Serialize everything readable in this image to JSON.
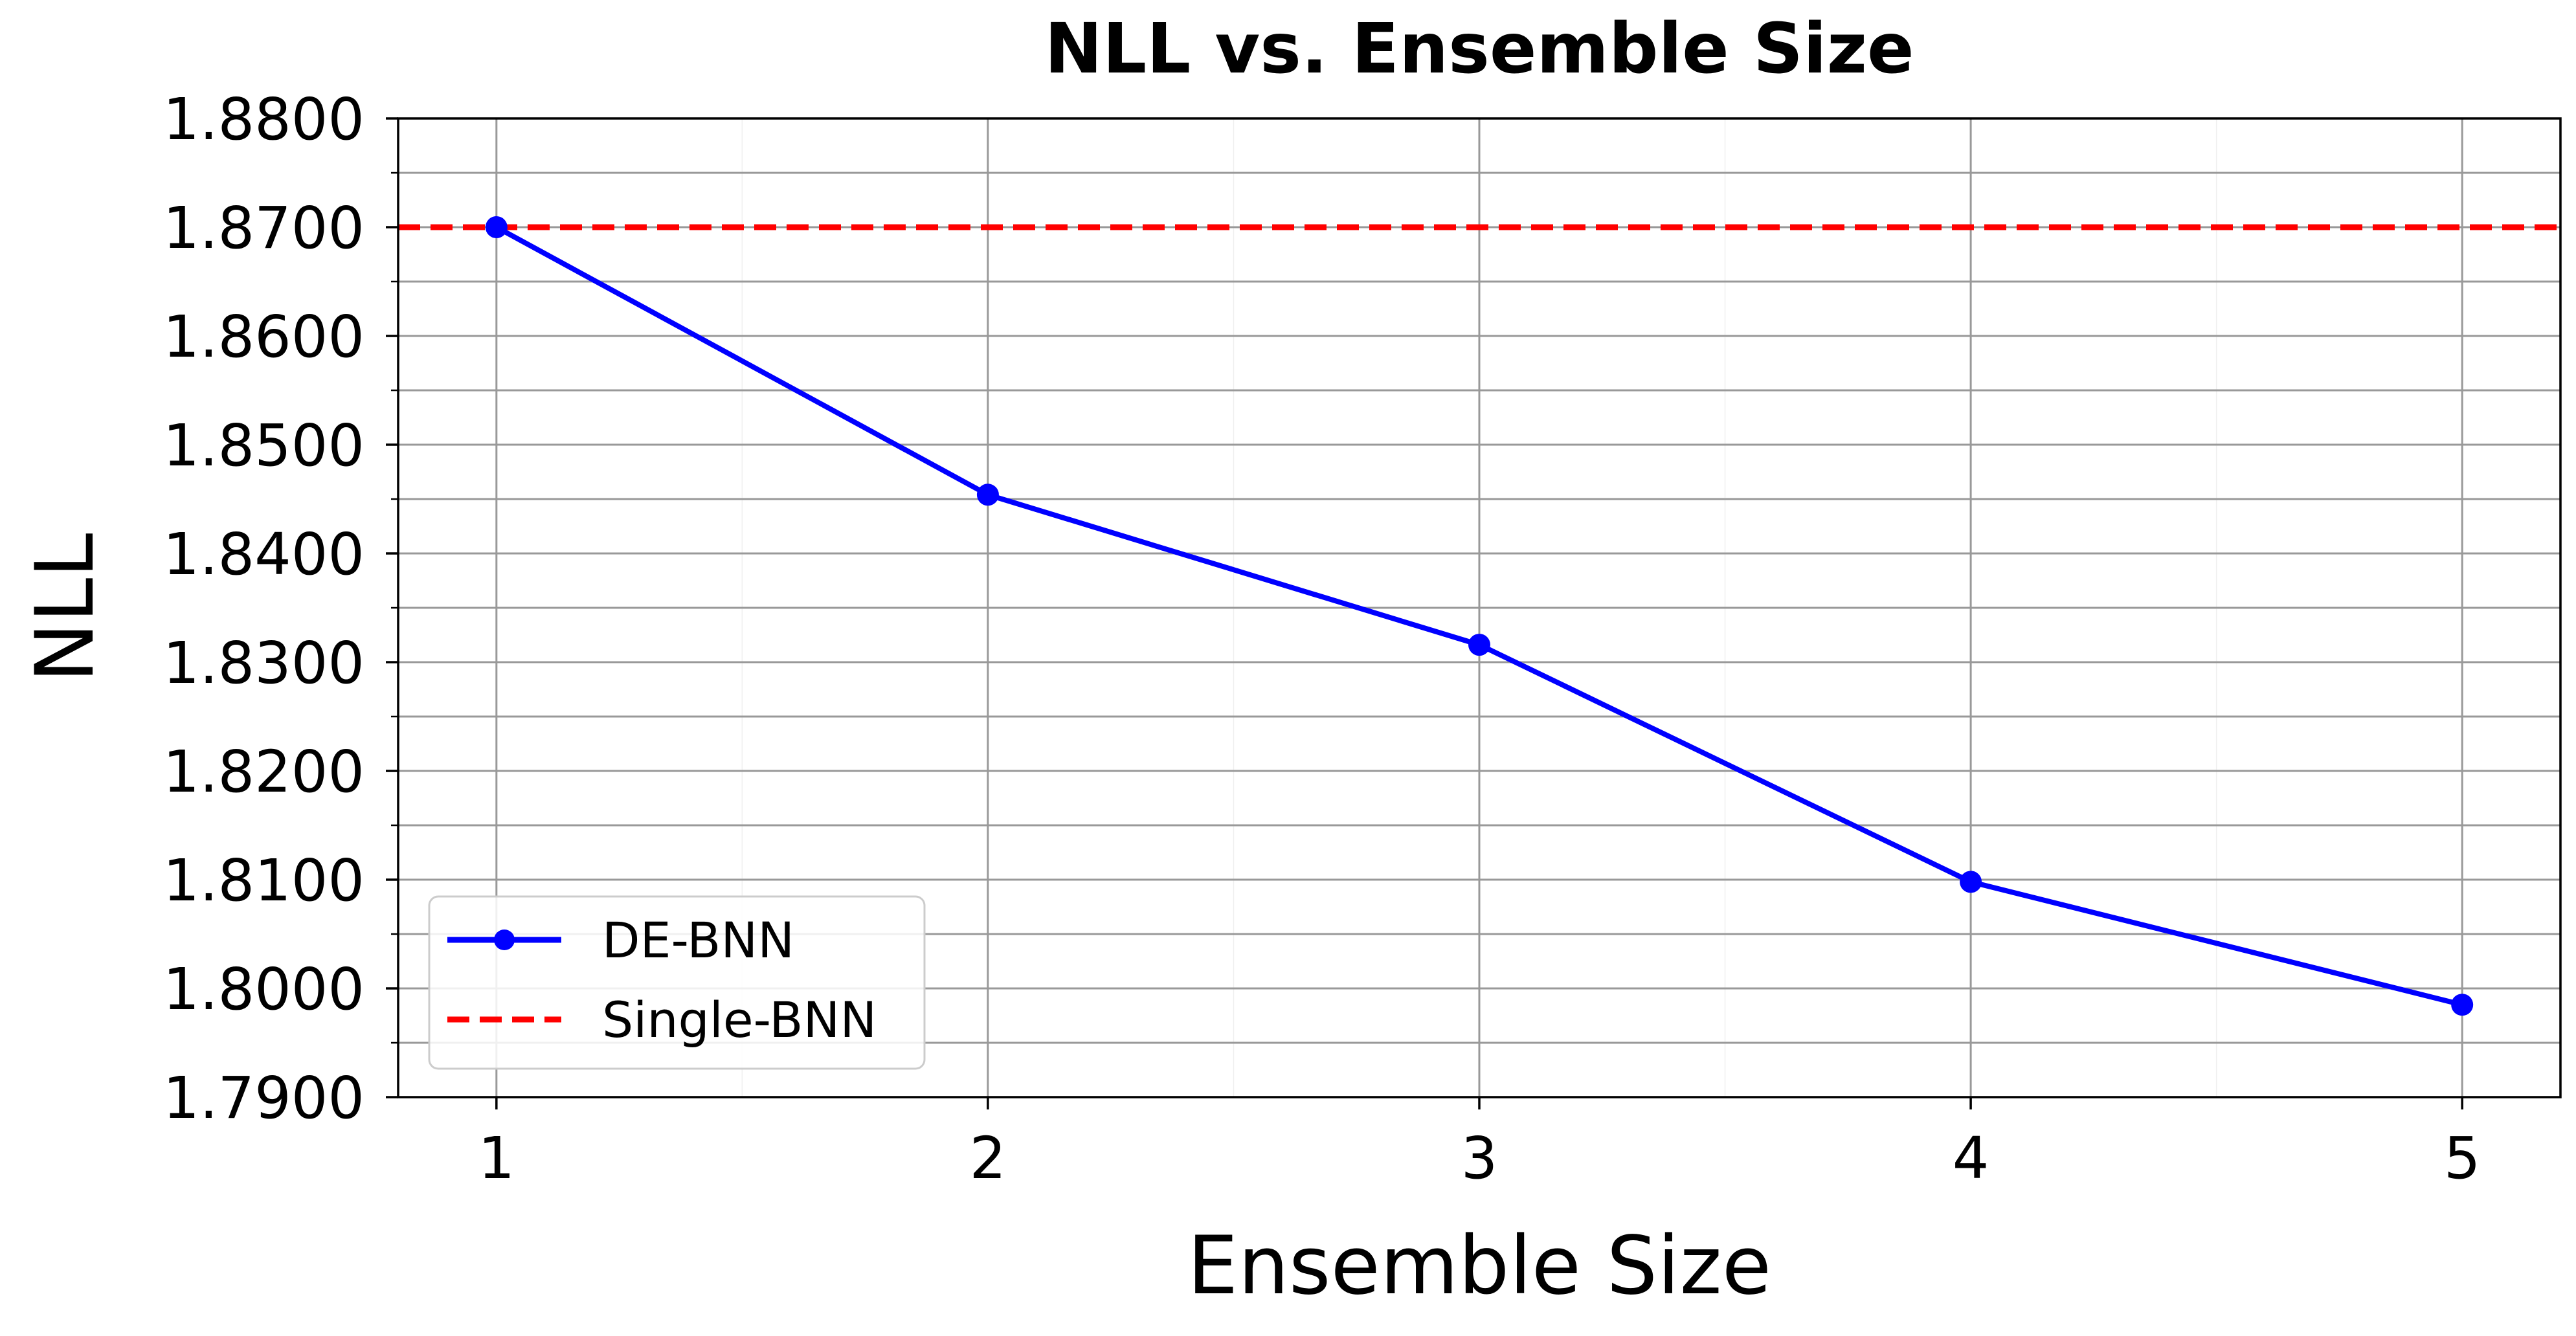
{
  "chart_data": {
    "type": "line",
    "title": "NLL vs. Ensemble Size",
    "xlabel": "Ensemble Size",
    "ylabel": "NLL",
    "x": [
      1,
      2,
      3,
      4,
      5
    ],
    "x_tick_labels": [
      "1",
      "2",
      "3",
      "4",
      "5"
    ],
    "xlim": [
      0.8,
      5.2
    ],
    "ylim": [
      1.79,
      1.88
    ],
    "y_ticks": [
      1.79,
      1.8,
      1.81,
      1.82,
      1.83,
      1.84,
      1.85,
      1.86,
      1.87,
      1.88
    ],
    "y_tick_labels": [
      "1.7900",
      "1.8000",
      "1.8100",
      "1.8200",
      "1.8300",
      "1.8400",
      "1.8500",
      "1.8600",
      "1.8700",
      "1.8800"
    ],
    "grid": true,
    "legend_position": "lower-left",
    "series": [
      {
        "name": "DE-BNN",
        "type": "line-marker",
        "color": "#0000ff",
        "values": [
          1.87,
          1.8454,
          1.8316,
          1.8098,
          1.7985
        ]
      },
      {
        "name": "Single-BNN",
        "type": "horizontal-dashed",
        "color": "#ff0000",
        "value": 1.87
      }
    ]
  }
}
